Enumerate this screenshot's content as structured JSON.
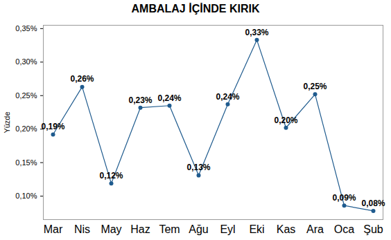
{
  "chart_data": {
    "type": "line",
    "title": "AMBALAJ İÇİNDE KIRIK",
    "y_label": "Yüzde",
    "categories": [
      "Mar",
      "Nis",
      "May",
      "Haz",
      "Tem",
      "Ağu",
      "Eyl",
      "Eki",
      "Kas",
      "Ara",
      "Oca",
      "Şub"
    ],
    "values": [
      0.192,
      0.263,
      0.119,
      0.232,
      0.235,
      0.131,
      0.237,
      0.333,
      0.202,
      0.252,
      0.086,
      0.078
    ],
    "value_labels": [
      "0,19%",
      "0,26%",
      "0,12%",
      "0,23%",
      "0,24%",
      "0,13%",
      "0,24%",
      "0,33%",
      "0,20%",
      "0,25%",
      "0,09%",
      "0,08%"
    ],
    "color": "#1f5b8e",
    "marker": "circle",
    "line_style": "solid",
    "ylim": [
      0.065,
      0.355
    ],
    "yticks": [
      {
        "value": 0.1,
        "label": "0,10%"
      },
      {
        "value": 0.15,
        "label": "0,15%"
      },
      {
        "value": 0.2,
        "label": "0,20%"
      },
      {
        "value": 0.25,
        "label": "0,25%"
      },
      {
        "value": 0.3,
        "label": "0,30%"
      },
      {
        "value": 0.35,
        "label": "0,35%"
      }
    ],
    "grid": false,
    "data_labels": true
  }
}
